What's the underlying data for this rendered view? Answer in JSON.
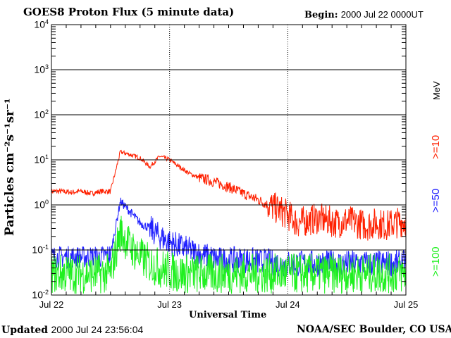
{
  "header": {
    "title": "GOES8 Proton Flux (5 minute data)",
    "begin_label": "Begin:",
    "begin_value": "2000 Jul 22 0000UT"
  },
  "footer": {
    "updated_label": "Updated",
    "updated_value": "2000 Jul 24 23:56:04",
    "credit": "NOAA/SEC Boulder, CO USA"
  },
  "chart_data": {
    "type": "line",
    "title": "GOES8 Proton Flux (5 minute data)",
    "xlabel": "Universal Time",
    "ylabel": "Particles cm⁻²s⁻¹sr⁻¹",
    "yscale": "log",
    "ylim": [
      0.01,
      10000
    ],
    "xlim_hours": [
      0,
      72
    ],
    "y_ticks": [
      {
        "base": "10",
        "exp": "4"
      },
      {
        "base": "10",
        "exp": "3"
      },
      {
        "base": "10",
        "exp": "2"
      },
      {
        "base": "10",
        "exp": "1"
      },
      {
        "base": "10",
        "exp": "0"
      },
      {
        "base": "10",
        "exp": "-1"
      },
      {
        "base": "10",
        "exp": "-2"
      }
    ],
    "x_ticks": [
      "Jul 22",
      "Jul 23",
      "Jul 24",
      "Jul 25"
    ],
    "x_hours": [
      0,
      2,
      4,
      6,
      8,
      10,
      12,
      14,
      16,
      18,
      20,
      22,
      24,
      26,
      28,
      30,
      32,
      34,
      36,
      38,
      40,
      42,
      44,
      46,
      48,
      50,
      52,
      54,
      56,
      58,
      60,
      62,
      64,
      66,
      68,
      70,
      72
    ],
    "series": [
      {
        "name": ">=10",
        "unit": "MeV",
        "color": "#ff2000",
        "values": [
          2,
          2,
          1.9,
          2,
          1.8,
          2,
          2,
          15,
          13,
          11,
          7,
          12,
          10,
          7,
          5,
          4,
          3.5,
          3,
          2.5,
          2,
          1.6,
          1.3,
          1,
          0.8,
          0.6,
          0.4,
          0.45,
          0.5,
          0.45,
          0.4,
          0.45,
          0.4,
          0.35,
          0.4,
          0.35,
          0.4,
          0.45
        ]
      },
      {
        "name": ">=50",
        "color": "#2020ff",
        "values": [
          0.07,
          0.07,
          0.07,
          0.07,
          0.07,
          0.07,
          0.08,
          1.2,
          0.7,
          0.4,
          0.3,
          0.2,
          0.15,
          0.12,
          0.1,
          0.08,
          0.07,
          0.06,
          0.06,
          0.06,
          0.06,
          0.055,
          0.055,
          0.05,
          0.05,
          0.05,
          0.05,
          0.05,
          0.05,
          0.05,
          0.05,
          0.05,
          0.05,
          0.05,
          0.05,
          0.05,
          0.05
        ]
      },
      {
        "name": ">=100",
        "color": "#20f020",
        "values": [
          0.03,
          0.03,
          0.03,
          0.03,
          0.03,
          0.03,
          0.03,
          0.25,
          0.12,
          0.07,
          0.05,
          0.04,
          0.035,
          0.03,
          0.03,
          0.03,
          0.03,
          0.03,
          0.03,
          0.03,
          0.03,
          0.03,
          0.03,
          0.03,
          0.03,
          0.03,
          0.03,
          0.03,
          0.03,
          0.03,
          0.03,
          0.03,
          0.03,
          0.03,
          0.03,
          0.03,
          0.03
        ]
      }
    ]
  }
}
